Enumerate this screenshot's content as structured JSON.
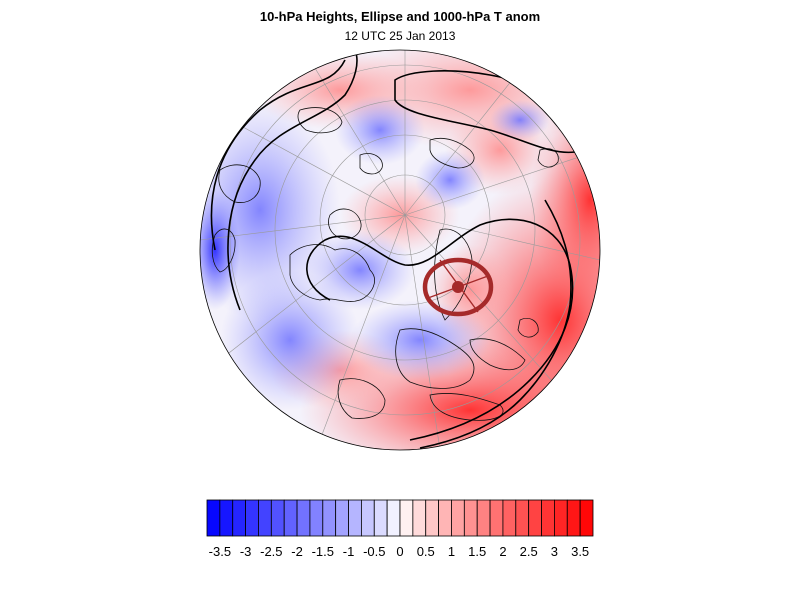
{
  "header": {
    "title": "10-hPa Heights, Ellipse and 1000-hPa T anom",
    "subtitle": "12 UTC 25 Jan 2013"
  },
  "map": {
    "projection": "orthographic-north-polar",
    "field": "1000-hPa temperature anomaly",
    "overlay": "10-hPa height contours and vortex ellipse",
    "ellipse_color": "#a52a2a"
  },
  "colorbar": {
    "labels": [
      "-3.5",
      "-3",
      "-2.5",
      "-2",
      "-1.5",
      "-1",
      "-0.5",
      "0",
      "0.5",
      "1",
      "1.5",
      "2",
      "2.5",
      "3",
      "3.5"
    ],
    "min": -3.75,
    "max": 3.75,
    "step": 0.25,
    "cold_color": "#0000ff",
    "warm_color": "#ff0000",
    "neutral_color": "#ffffff"
  }
}
